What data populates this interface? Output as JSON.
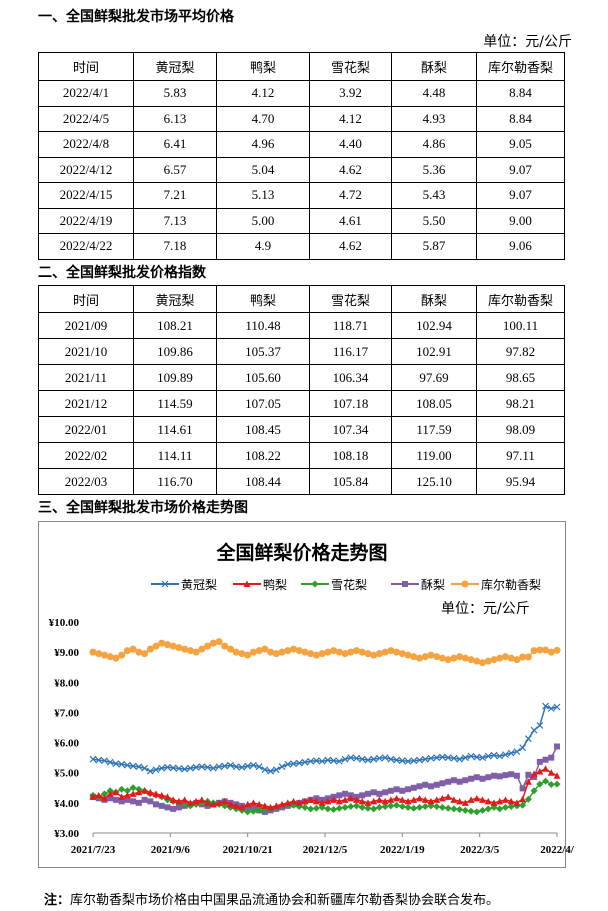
{
  "section1": {
    "title": "一、全国鲜梨批发市场平均价格",
    "unit": "单位：元/公斤",
    "headers": [
      "时间",
      "黄冠梨",
      "鸭梨",
      "雪花梨",
      "酥梨",
      "库尔勒香梨"
    ],
    "rows": [
      [
        "2022/4/1",
        "5.83",
        "4.12",
        "3.92",
        "4.48",
        "8.84"
      ],
      [
        "2022/4/5",
        "6.13",
        "4.70",
        "4.12",
        "4.93",
        "8.84"
      ],
      [
        "2022/4/8",
        "6.41",
        "4.96",
        "4.40",
        "4.86",
        "9.05"
      ],
      [
        "2022/4/12",
        "6.57",
        "5.04",
        "4.62",
        "5.36",
        "9.07"
      ],
      [
        "2022/4/15",
        "7.21",
        "5.13",
        "4.72",
        "5.43",
        "9.07"
      ],
      [
        "2022/4/19",
        "7.13",
        "5.00",
        "4.61",
        "5.50",
        "9.00"
      ],
      [
        "2022/4/22",
        "7.18",
        "4.9",
        "4.62",
        "5.87",
        "9.06"
      ]
    ]
  },
  "section2": {
    "title": "二、全国鲜梨批发价格指数",
    "headers": [
      "时间",
      "黄冠梨",
      "鸭梨",
      "雪花梨",
      "酥梨",
      "库尔勒香梨"
    ],
    "rows": [
      [
        "2021/09",
        "108.21",
        "110.48",
        "118.71",
        "102.94",
        "100.11"
      ],
      [
        "2021/10",
        "109.86",
        "105.37",
        "116.17",
        "102.91",
        "97.82"
      ],
      [
        "2021/11",
        "109.89",
        "105.60",
        "106.34",
        "97.69",
        "98.65"
      ],
      [
        "2021/12",
        "114.59",
        "107.05",
        "107.18",
        "108.05",
        "98.21"
      ],
      [
        "2022/01",
        "114.61",
        "108.45",
        "107.34",
        "117.59",
        "98.09"
      ],
      [
        "2022/02",
        "114.11",
        "108.22",
        "108.18",
        "119.00",
        "97.11"
      ],
      [
        "2022/03",
        "116.70",
        "108.44",
        "105.84",
        "125.10",
        "95.94"
      ]
    ]
  },
  "section3": {
    "title": "三、全国鲜梨批发市场价格走势图"
  },
  "chart_data": {
    "type": "line",
    "title": "全国鲜梨价格走势图",
    "unit_label": "单位：元/公斤",
    "legend_position": "top",
    "ylim": [
      3.0,
      10.0
    ],
    "y_ticks": [
      "¥3.00",
      "¥4.00",
      "¥5.00",
      "¥6.00",
      "¥7.00",
      "¥8.00",
      "¥9.00",
      "¥10.00"
    ],
    "x_tick_labels": [
      "2021/7/23",
      "2021/9/6",
      "2021/10/21",
      "2021/12/5",
      "2022/1/19",
      "2022/3/5",
      "2022/4/"
    ],
    "grid": false,
    "series": [
      {
        "name": "黄冠梨",
        "color": "#2e75b6",
        "marker": "x",
        "values": [
          5.45,
          5.42,
          5.4,
          5.35,
          5.3,
          5.28,
          5.25,
          5.22,
          5.2,
          5.15,
          5.05,
          5.1,
          5.15,
          5.18,
          5.16,
          5.14,
          5.12,
          5.15,
          5.18,
          5.2,
          5.18,
          5.15,
          5.2,
          5.22,
          5.25,
          5.2,
          5.18,
          5.22,
          5.25,
          5.2,
          5.1,
          5.05,
          5.1,
          5.2,
          5.28,
          5.3,
          5.32,
          5.35,
          5.38,
          5.4,
          5.38,
          5.42,
          5.4,
          5.38,
          5.45,
          5.5,
          5.48,
          5.45,
          5.42,
          5.45,
          5.48,
          5.5,
          5.45,
          5.42,
          5.4,
          5.38,
          5.4,
          5.42,
          5.45,
          5.48,
          5.5,
          5.52,
          5.5,
          5.48,
          5.45,
          5.5,
          5.55,
          5.52,
          5.5,
          5.55,
          5.58,
          5.55,
          5.6,
          5.65,
          5.7,
          5.83,
          6.13,
          6.41,
          6.57,
          7.21,
          7.13,
          7.18
        ]
      },
      {
        "name": "鸭梨",
        "color": "#e31a1c",
        "marker": "triangle",
        "values": [
          4.2,
          4.25,
          4.15,
          4.3,
          4.35,
          4.2,
          4.25,
          4.3,
          4.35,
          4.4,
          4.35,
          4.3,
          4.25,
          4.2,
          4.1,
          4.05,
          4.1,
          4.0,
          4.05,
          4.1,
          4.0,
          3.95,
          4.0,
          4.05,
          3.95,
          3.9,
          3.85,
          3.95,
          4.0,
          3.95,
          3.9,
          3.85,
          3.9,
          3.95,
          4.0,
          4.05,
          4.0,
          4.05,
          4.1,
          4.05,
          4.0,
          4.05,
          4.1,
          4.05,
          4.1,
          4.15,
          4.1,
          4.05,
          4.0,
          4.05,
          4.1,
          4.05,
          4.1,
          4.15,
          4.1,
          4.05,
          4.1,
          4.15,
          4.1,
          4.05,
          4.1,
          4.15,
          4.2,
          4.1,
          4.05,
          4.0,
          4.1,
          4.15,
          4.1,
          4.05,
          4.0,
          4.05,
          4.1,
          4.05,
          4.0,
          4.12,
          4.7,
          4.96,
          5.04,
          5.13,
          5.0,
          4.9
        ]
      },
      {
        "name": "雪花梨",
        "color": "#2ca02c",
        "marker": "diamond",
        "values": [
          4.25,
          4.2,
          4.3,
          4.4,
          4.35,
          4.45,
          4.4,
          4.5,
          4.45,
          4.4,
          4.3,
          4.25,
          4.2,
          4.1,
          4.05,
          4.0,
          3.95,
          3.9,
          3.95,
          4.0,
          4.05,
          4.0,
          3.95,
          3.9,
          3.85,
          3.8,
          3.75,
          3.7,
          3.72,
          3.75,
          3.78,
          3.8,
          3.85,
          3.9,
          3.95,
          3.92,
          3.88,
          3.85,
          3.8,
          3.82,
          3.85,
          3.8,
          3.78,
          3.82,
          3.85,
          3.88,
          3.9,
          3.85,
          3.82,
          3.8,
          3.85,
          3.88,
          3.9,
          3.92,
          3.88,
          3.85,
          3.82,
          3.85,
          3.88,
          3.9,
          3.88,
          3.85,
          3.82,
          3.8,
          3.78,
          3.75,
          3.72,
          3.7,
          3.75,
          3.8,
          3.85,
          3.8,
          3.85,
          3.88,
          3.9,
          3.92,
          4.12,
          4.4,
          4.62,
          4.72,
          4.61,
          4.62
        ]
      },
      {
        "name": "酥梨",
        "color": "#7f5fa8",
        "marker": "square",
        "values": [
          4.2,
          4.15,
          4.1,
          4.15,
          4.1,
          4.05,
          4.1,
          4.05,
          4.0,
          4.1,
          4.05,
          3.95,
          3.9,
          3.85,
          3.8,
          3.85,
          3.9,
          3.95,
          4.0,
          3.95,
          3.9,
          3.95,
          4.0,
          4.05,
          4.0,
          3.95,
          3.9,
          3.85,
          3.8,
          3.75,
          3.7,
          3.75,
          3.8,
          3.85,
          3.9,
          3.95,
          4.0,
          4.05,
          4.1,
          4.15,
          4.1,
          4.15,
          4.2,
          4.25,
          4.3,
          4.25,
          4.2,
          4.25,
          4.3,
          4.35,
          4.3,
          4.35,
          4.4,
          4.45,
          4.4,
          4.45,
          4.5,
          4.55,
          4.6,
          4.55,
          4.6,
          4.65,
          4.7,
          4.75,
          4.7,
          4.75,
          4.8,
          4.85,
          4.8,
          4.85,
          4.9,
          4.88,
          4.92,
          4.95,
          4.9,
          4.48,
          4.93,
          4.86,
          5.36,
          5.43,
          5.5,
          5.87
        ]
      },
      {
        "name": "库尔勒香梨",
        "color": "#f4a340",
        "marker": "circle",
        "values": [
          9.0,
          8.95,
          8.9,
          8.85,
          8.8,
          8.9,
          9.05,
          9.1,
          9.0,
          8.95,
          9.1,
          9.2,
          9.3,
          9.25,
          9.2,
          9.15,
          9.1,
          9.05,
          9.0,
          9.1,
          9.2,
          9.3,
          9.35,
          9.2,
          9.1,
          9.0,
          8.95,
          8.9,
          9.0,
          9.05,
          9.1,
          9.0,
          8.95,
          9.0,
          9.05,
          9.1,
          9.05,
          9.0,
          8.95,
          8.9,
          8.95,
          9.0,
          9.05,
          9.0,
          8.95,
          9.0,
          9.05,
          9.0,
          8.95,
          8.9,
          8.95,
          9.0,
          9.05,
          9.0,
          8.95,
          8.9,
          8.85,
          8.8,
          8.85,
          8.9,
          8.85,
          8.8,
          8.75,
          8.8,
          8.85,
          8.8,
          8.75,
          8.7,
          8.65,
          8.7,
          8.75,
          8.8,
          8.85,
          8.8,
          8.75,
          8.84,
          8.84,
          9.05,
          9.07,
          9.07,
          9.0,
          9.06
        ]
      }
    ]
  },
  "footnote": {
    "label": "注：",
    "text": "库尔勒香梨市场价格由中国果品流通协会和新疆库尔勒香梨协会联合发布。"
  }
}
